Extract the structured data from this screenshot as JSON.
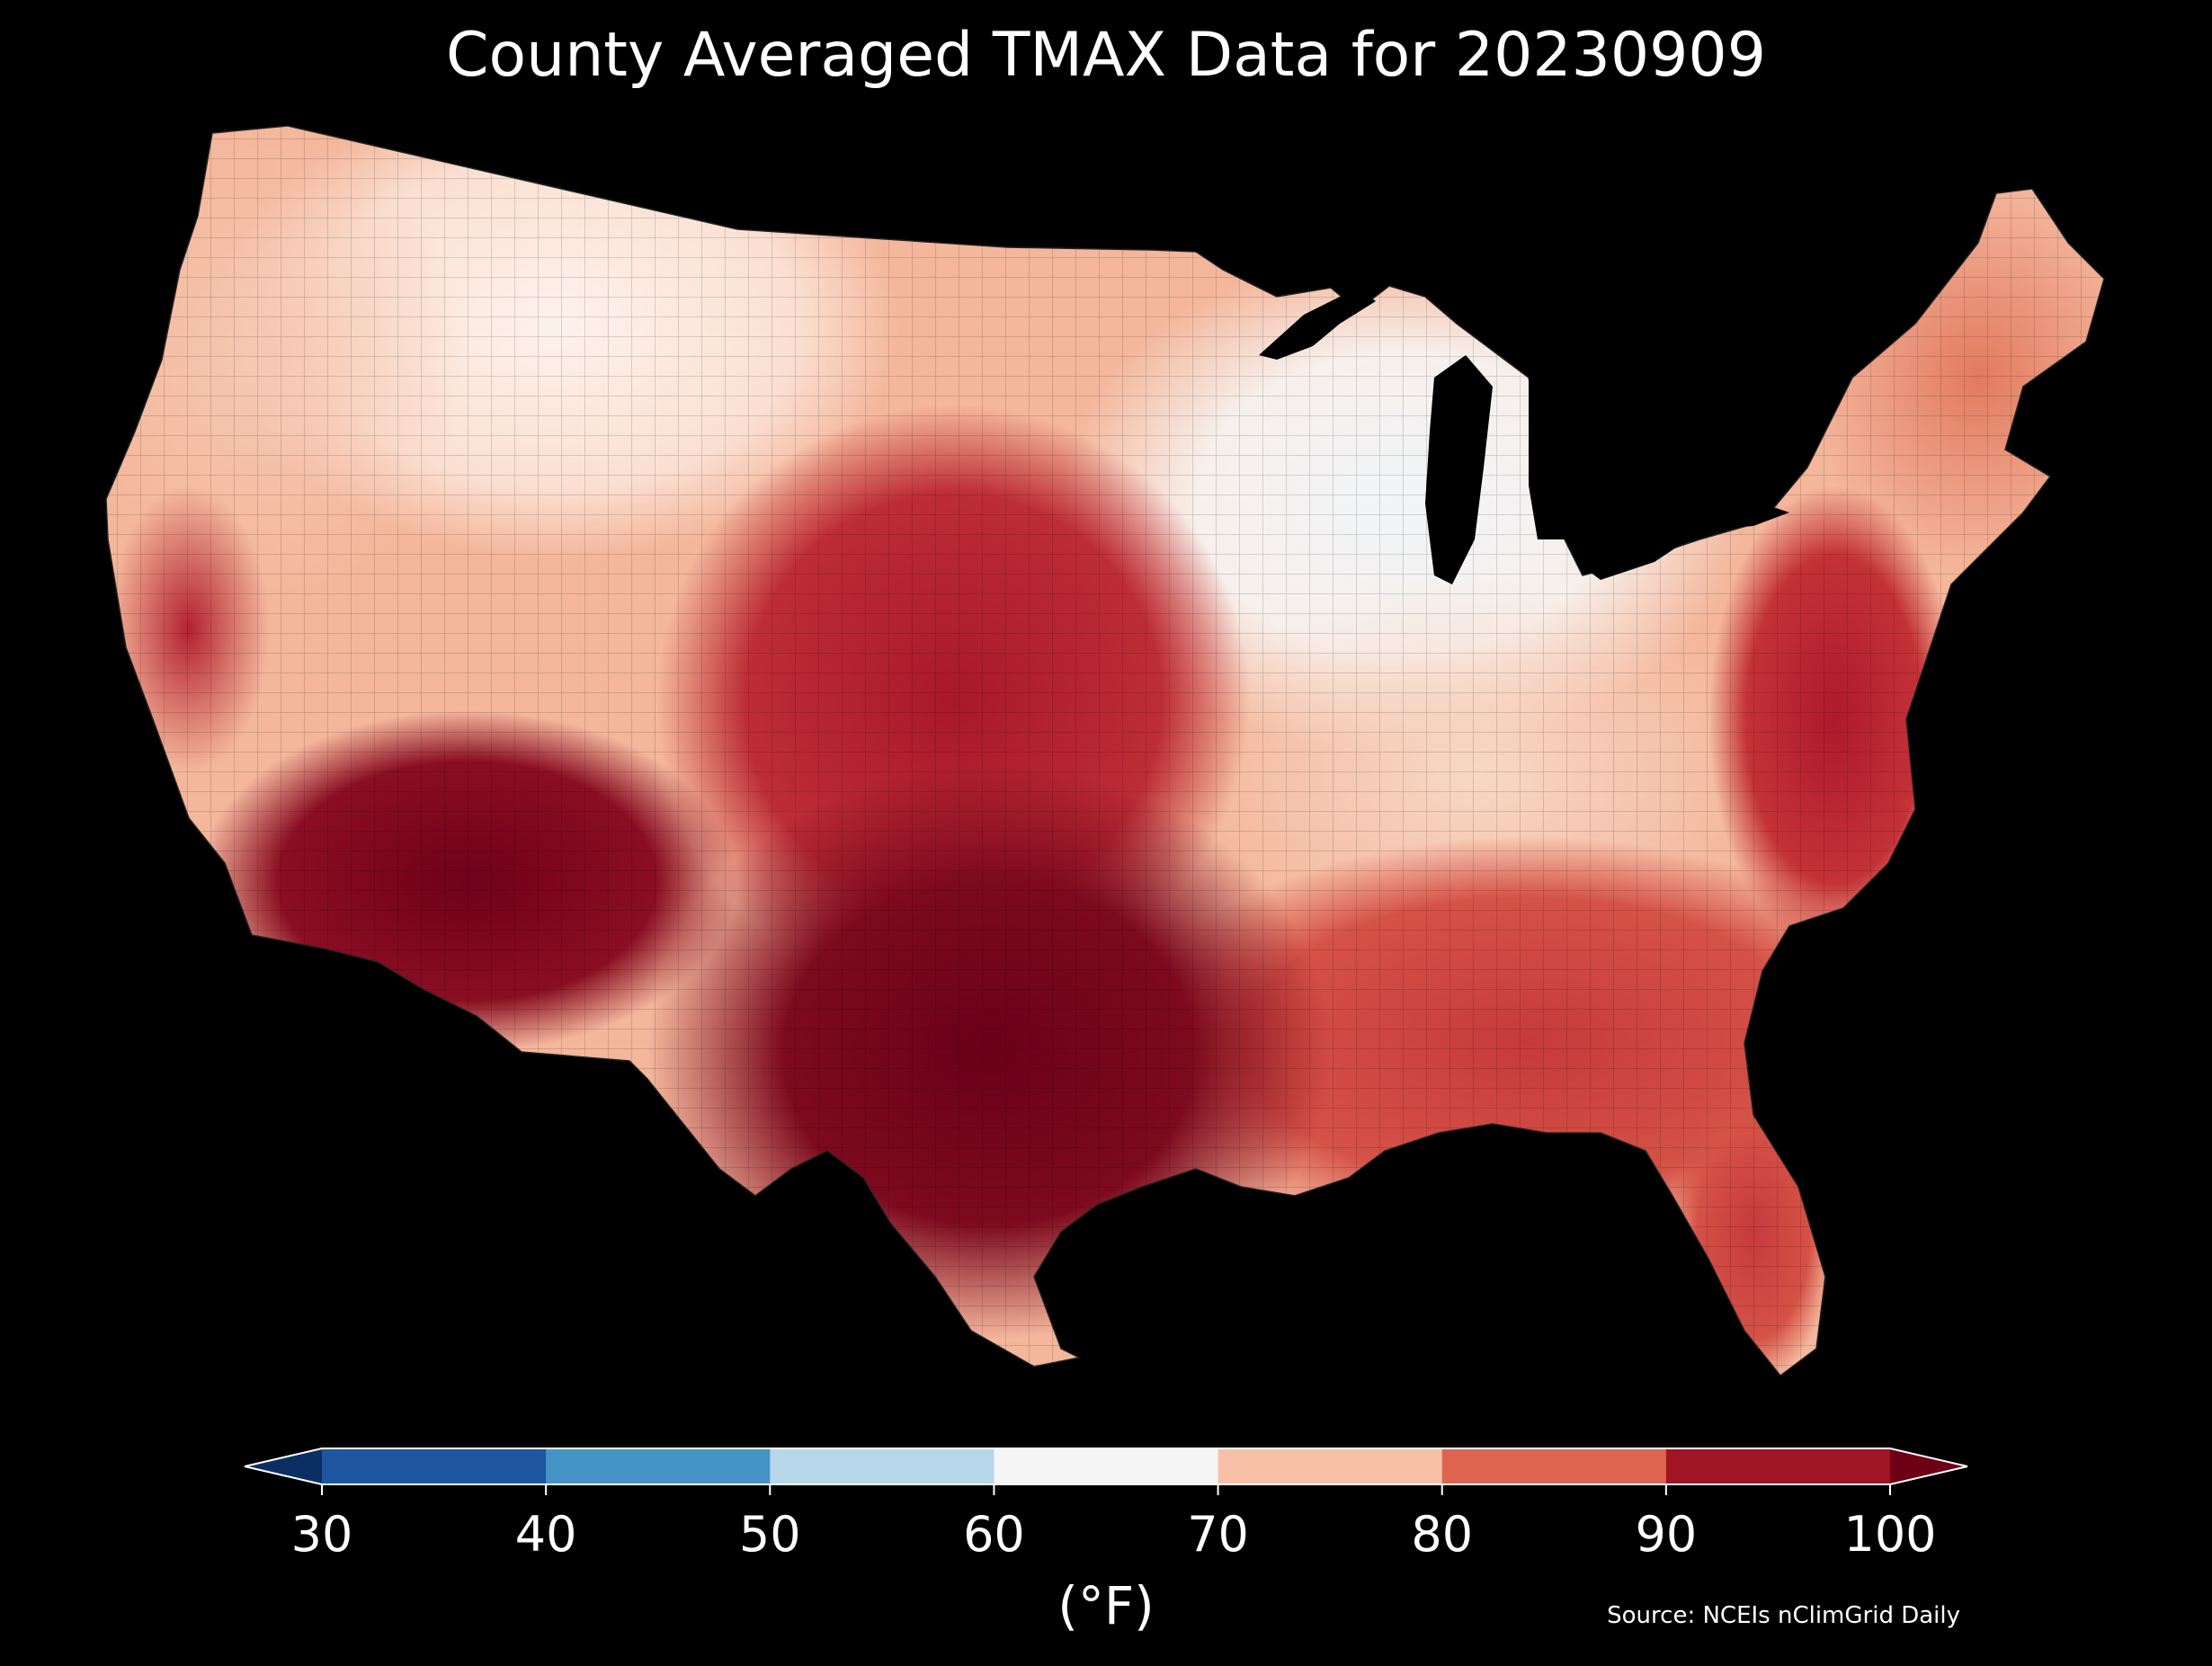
{
  "title": "County Averaged TMAX Data for 20230909",
  "colorbar": {
    "ticks": [
      "30",
      "40",
      "50",
      "60",
      "70",
      "80",
      "90",
      "100"
    ],
    "bins": [
      {
        "min": 30,
        "max": 40,
        "color": "#1d569f"
      },
      {
        "min": 40,
        "max": 50,
        "color": "#4694c6"
      },
      {
        "min": 50,
        "max": 60,
        "color": "#b7d7ea"
      },
      {
        "min": 60,
        "max": 70,
        "color": "#f5f5f5"
      },
      {
        "min": 70,
        "max": 80,
        "color": "#f8c1a7"
      },
      {
        "min": 80,
        "max": 90,
        "color": "#dd6550"
      },
      {
        "min": 90,
        "max": 100,
        "color": "#a11424"
      }
    ],
    "under_color": "#0b2f63",
    "over_color": "#6d0015",
    "unit_label": "(°F)"
  },
  "source": "Source: NCEIs nClimGrid Daily",
  "map": {
    "region": "Contiguous United States",
    "background": "#000000",
    "land_base_color": "#f4b79c",
    "regional_shading": [
      {
        "area": "Great Lakes / Michigan",
        "color": "#f3f6f8"
      },
      {
        "area": "Northern Rockies",
        "color": "#fbeae0"
      },
      {
        "area": "Ohio Valley / Appalachians",
        "color": "#f8d4c0"
      },
      {
        "area": "Southern Plains",
        "color": "#a8182b"
      },
      {
        "area": "Texas",
        "color": "#7d0a1e"
      },
      {
        "area": "Desert Southwest",
        "color": "#7c0a1f"
      },
      {
        "area": "Southeast / Gulf Coast",
        "color": "#d04a44"
      },
      {
        "area": "Mid-Atlantic Coast",
        "color": "#b5202e"
      },
      {
        "area": "New England",
        "color": "#e88a6e"
      }
    ]
  }
}
